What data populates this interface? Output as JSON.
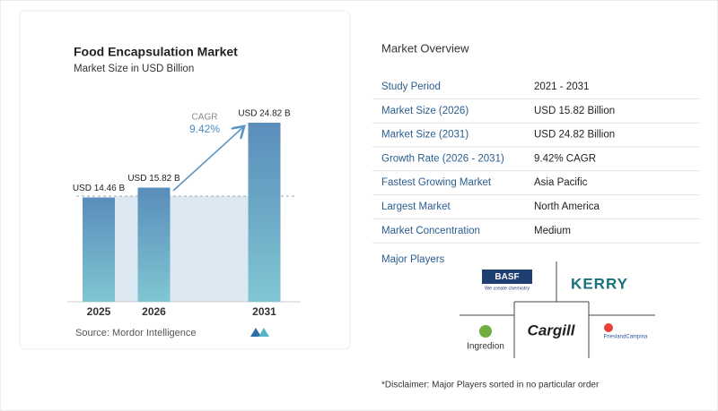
{
  "chart_data": {
    "type": "bar",
    "title": "Food Encapsulation Market",
    "subtitle": "Market Size in USD Billion",
    "categories": [
      "2025",
      "2026",
      "2031"
    ],
    "values": [
      14.46,
      15.82,
      24.82
    ],
    "value_labels": [
      "USD 14.46 B",
      "USD 15.82 B",
      "USD 24.82 B"
    ],
    "annotations": [
      "CAGR",
      "9.42%"
    ],
    "source": "Source: Mordor Intelligence"
  },
  "overview": {
    "title": "Market Overview",
    "rows": [
      [
        "Study Period",
        "2021 - 2031"
      ],
      [
        "Market Size (2026)",
        "USD 15.82 Billion"
      ],
      [
        "Market Size (2031)",
        "USD 24.82 Billion"
      ],
      [
        "Growth Rate (2026 - 2031)",
        "9.42% CAGR"
      ],
      [
        "Fastest Growing Market",
        "Asia Pacific"
      ],
      [
        "Largest Market",
        "North America"
      ],
      [
        "Market Concentration",
        "Medium"
      ]
    ]
  },
  "major_players": {
    "title": "Major Players",
    "items": [
      "BASF",
      "We create chemistry",
      "KERRY",
      "Ingredion",
      "Cargill",
      "FrieslandCampina"
    ]
  },
  "disclaimer": "*Disclaimer: Major Players sorted in no particular order"
}
